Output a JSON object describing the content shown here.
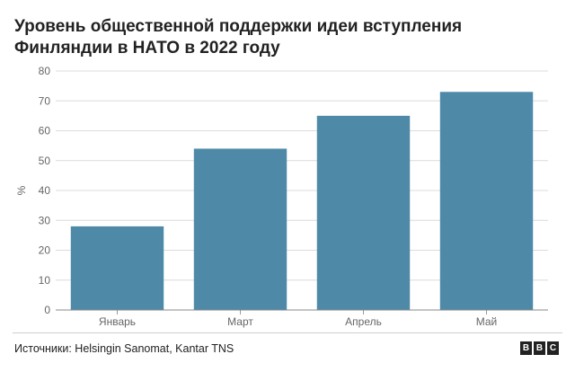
{
  "title": "Уровень общественной поддержки идеи вступления Финляндии в НАТО в 2022 году",
  "footer": {
    "source": "Источники: Helsingin Sanomat, Kantar TNS",
    "logo_letters": [
      "B",
      "B",
      "C"
    ]
  },
  "chart_data": {
    "type": "bar",
    "categories": [
      "Январь",
      "Март",
      "Апрель",
      "Май"
    ],
    "values": [
      28,
      54,
      65,
      73
    ],
    "ylabel": "%",
    "xlabel": "",
    "ylim": [
      0,
      80
    ],
    "yticks": [
      0,
      10,
      20,
      30,
      40,
      50,
      60,
      70,
      80
    ],
    "grid": true,
    "bar_color": "#4e8aa8",
    "grid_color": "#dcdcdc"
  }
}
